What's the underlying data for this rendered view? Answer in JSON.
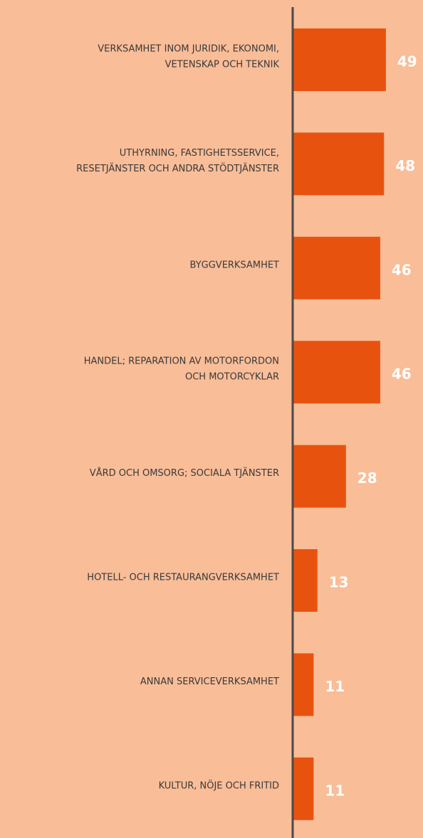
{
  "chart_data": {
    "type": "bar",
    "orientation": "horizontal",
    "categories": [
      [
        "VERKSAMHET INOM JURIDIK, EKONOMI,",
        "VETENSKAP OCH TEKNIK"
      ],
      [
        "UTHYRNING, FASTIGHETSSERVICE,",
        "RESETJÄNSTER OCH ANDRA STÖDTJÄNSTER"
      ],
      [
        "BYGGVERKSAMHET"
      ],
      [
        "HANDEL; REPARATION AV MOTORFORDON",
        "OCH MOTORCYKLAR"
      ],
      [
        "VÅRD OCH OMSORG; SOCIALA TJÄNSTER"
      ],
      [
        "HOTELL- OCH RESTAURANGVERKSAMHET"
      ],
      [
        "ANNAN SERVICEVERKSAMHET"
      ],
      [
        "KULTUR, NÖJE OCH FRITID"
      ]
    ],
    "values": [
      49,
      48,
      46,
      46,
      28,
      13,
      11,
      11
    ],
    "color": "#e8520f",
    "xlim": [
      0,
      68.5
    ]
  }
}
